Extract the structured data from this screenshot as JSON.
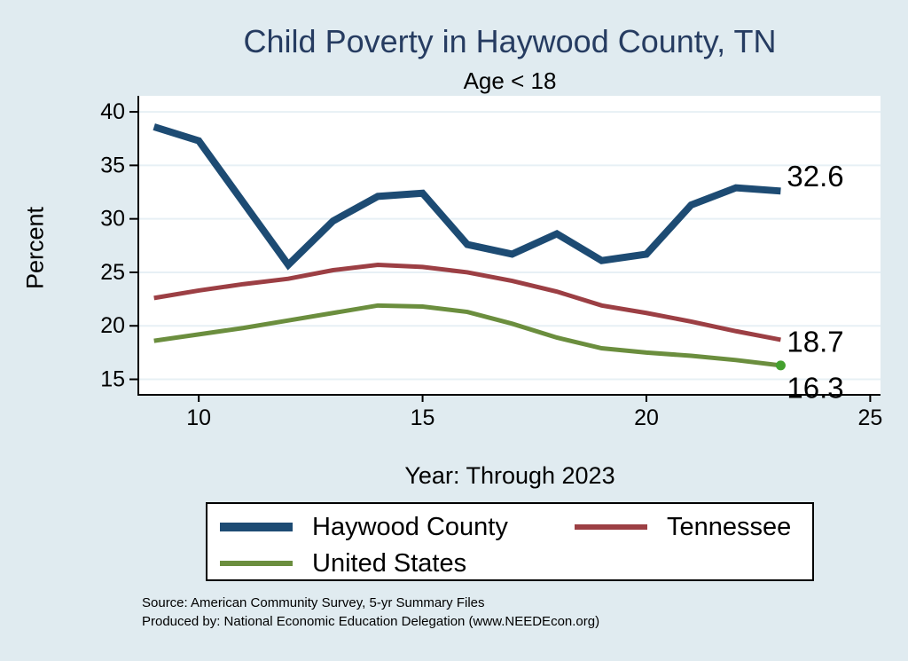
{
  "title": "Child Poverty in Haywood County, TN",
  "subtitle": "Age < 18",
  "ylabel": "Percent",
  "xlabel": "Year: Through 2023",
  "source": {
    "line1": "Source: American Community Survey, 5-yr Summary Files",
    "line2": "Produced by: National Economic Education Delegation (www.NEEDEcon.org)"
  },
  "colors": {
    "background": "#e0ebf0",
    "plot_background": "#ffffff",
    "title_text": "#263c61",
    "grid": "#e7f0f5",
    "axis": "#000000",
    "haywood": "#1d4b73",
    "tennessee": "#9c3f44",
    "us": "#6b8e3e",
    "us_end_dot": "#44a02e"
  },
  "legend": {
    "items": [
      {
        "label": "Haywood County",
        "color": "#1d4b73",
        "thick": true
      },
      {
        "label": "Tennessee",
        "color": "#9c3f44",
        "thick": false
      },
      {
        "label": "United States",
        "color": "#6b8e3e",
        "thick": false
      }
    ]
  },
  "end_labels": {
    "haywood": "32.6",
    "tennessee": "18.7",
    "us": "16.3"
  },
  "chart_data": {
    "type": "line",
    "title": "Child Poverty in Haywood County, TN",
    "subtitle": "Age < 18",
    "xlabel": "Year: Through 2023",
    "ylabel": "Percent",
    "x": [
      9,
      10,
      11,
      12,
      13,
      14,
      15,
      16,
      17,
      18,
      19,
      20,
      21,
      22,
      23
    ],
    "series": [
      {
        "name": "Haywood County",
        "color": "#1d4b73",
        "width": 8,
        "values": [
          38.6,
          37.3,
          31.5,
          25.7,
          29.8,
          32.1,
          32.4,
          27.6,
          26.7,
          28.6,
          26.1,
          26.7,
          31.3,
          32.9,
          32.6
        ]
      },
      {
        "name": "Tennessee",
        "color": "#9c3f44",
        "width": 5,
        "values": [
          22.6,
          23.3,
          23.9,
          24.4,
          25.2,
          25.7,
          25.5,
          25.0,
          24.2,
          23.2,
          21.9,
          21.2,
          20.4,
          19.5,
          18.7
        ]
      },
      {
        "name": "United States",
        "color": "#6b8e3e",
        "width": 5,
        "values": [
          18.6,
          19.2,
          19.8,
          20.5,
          21.2,
          21.9,
          21.8,
          21.3,
          20.2,
          18.9,
          17.9,
          17.5,
          17.2,
          16.8,
          16.3
        ]
      }
    ],
    "xticks": [
      10,
      15,
      20,
      25
    ],
    "yticks": [
      15,
      20,
      25,
      30,
      35,
      40
    ],
    "xlim": [
      8.65,
      25.23
    ],
    "ylim": [
      13.55,
      41.5
    ],
    "grid": true,
    "legend_position": "bottom",
    "end_value_labels": {
      "Haywood County": "32.6",
      "Tennessee": "18.7",
      "United States": "16.3"
    },
    "end_marker_series": "United States"
  }
}
